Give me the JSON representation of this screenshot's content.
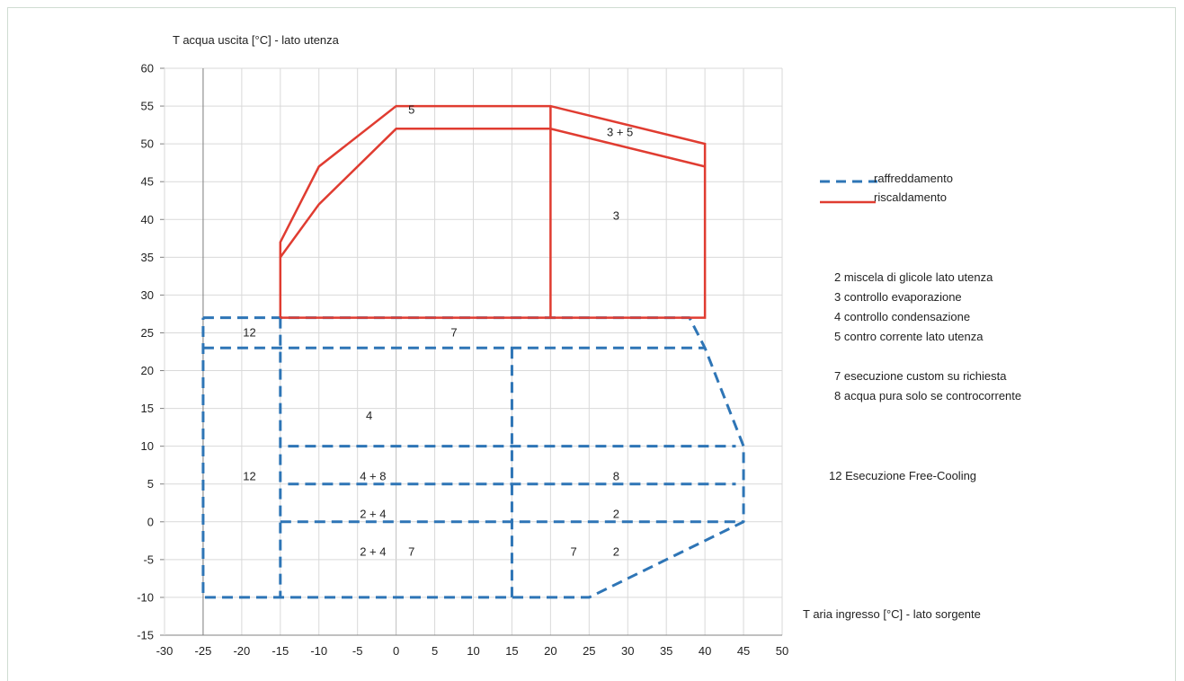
{
  "chart_data": {
    "type": "line",
    "xlabel": "T aria ingresso [°C] - lato sorgente",
    "ylabel": "T acqua uscita [°C] - lato utenza",
    "xlim": [
      -30,
      50
    ],
    "ylim": [
      -15,
      60
    ],
    "x_ticks": [
      -30,
      -25,
      -20,
      -15,
      -10,
      -5,
      0,
      5,
      10,
      15,
      20,
      25,
      30,
      35,
      40,
      45,
      50
    ],
    "y_ticks": [
      60,
      55,
      50,
      45,
      40,
      35,
      30,
      25,
      20,
      15,
      10,
      5,
      0,
      -5,
      -10,
      -15
    ],
    "grid": true,
    "legend_position": "right",
    "series": [
      {
        "name": "raffreddamento",
        "color": "#2e75b6",
        "style": "dashed"
      },
      {
        "name": "riscaldamento",
        "color": "#e03c31",
        "style": "solid"
      }
    ],
    "heating_lines": [
      [
        [
          -15,
          27
        ],
        [
          -15,
          37
        ],
        [
          -10,
          47
        ],
        [
          0,
          55
        ],
        [
          20,
          55
        ],
        [
          40,
          50
        ],
        [
          40,
          27
        ],
        [
          -15,
          27
        ]
      ],
      [
        [
          -15,
          35
        ],
        [
          -10,
          42
        ],
        [
          0,
          52
        ],
        [
          20,
          52
        ],
        [
          40,
          47
        ]
      ],
      [
        [
          20,
          55
        ],
        [
          20,
          27
        ]
      ]
    ],
    "cooling_lines": [
      [
        [
          -25,
          27
        ],
        [
          38,
          27
        ],
        [
          40,
          23
        ],
        [
          45,
          10
        ],
        [
          45,
          0
        ],
        [
          25,
          -10
        ],
        [
          -25,
          -10
        ],
        [
          -25,
          27
        ]
      ],
      [
        [
          -25,
          23
        ],
        [
          40,
          23
        ]
      ],
      [
        [
          -15,
          27
        ],
        [
          -15,
          -10
        ]
      ],
      [
        [
          15,
          23
        ],
        [
          15,
          -10
        ]
      ],
      [
        [
          -14,
          10
        ],
        [
          44,
          10
        ]
      ],
      [
        [
          -14,
          5
        ],
        [
          44,
          5
        ]
      ],
      [
        [
          -15,
          0
        ],
        [
          45,
          0
        ]
      ]
    ],
    "region_labels": [
      {
        "text": "5",
        "x": 2,
        "y": 54
      },
      {
        "text": "3 + 5",
        "x": 29,
        "y": 51
      },
      {
        "text": "3",
        "x": 28.5,
        "y": 40
      },
      {
        "text": "12",
        "x": -19,
        "y": 24.5
      },
      {
        "text": "7",
        "x": 7.5,
        "y": 24.5
      },
      {
        "text": "4",
        "x": -3.5,
        "y": 13.5
      },
      {
        "text": "12",
        "x": -19,
        "y": 5.5
      },
      {
        "text": "4 + 8",
        "x": -3,
        "y": 5.5
      },
      {
        "text": "8",
        "x": 28.5,
        "y": 5.5
      },
      {
        "text": "2 + 4",
        "x": -3,
        "y": 0.5
      },
      {
        "text": "2",
        "x": 28.5,
        "y": 0.5
      },
      {
        "text": "2 + 4",
        "x": -3,
        "y": -4.5
      },
      {
        "text": "7",
        "x": 2,
        "y": -4.5
      },
      {
        "text": "7",
        "x": 23,
        "y": -4.5
      },
      {
        "text": "2",
        "x": 28.5,
        "y": -4.5
      }
    ]
  },
  "legend": {
    "cooling_label": "raffreddamento",
    "heating_label": "riscaldamento"
  },
  "notes": [
    "2  miscela di glicole lato utenza",
    "3  controllo evaporazione",
    "4  controllo condensazione",
    "5  contro corrente lato utenza",
    "7  esecuzione custom su richiesta",
    "8  acqua pura solo se controcorrente",
    "12  Esecuzione Free-Cooling"
  ]
}
